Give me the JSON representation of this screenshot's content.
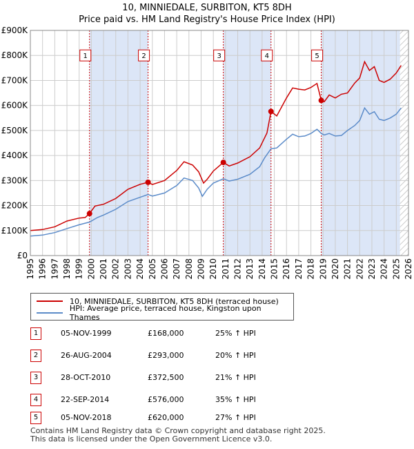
{
  "header": {
    "title_line1": "10, MINNIEDALE, SURBITON, KT5 8DH",
    "title_line2": "Price paid vs. HM Land Registry's House Price Index (HPI)"
  },
  "colors": {
    "price_line": "#cc0000",
    "hpi_line": "#5b8bc9",
    "shade": "#dce6f7",
    "grid": "#cccccc",
    "vline": "#cc0000"
  },
  "legend": {
    "price_label": "10, MINNIEDALE, SURBITON, KT5 8DH (terraced house)",
    "hpi_label": "HPI: Average price, terraced house, Kingston upon Thames"
  },
  "sales": [
    {
      "num": "1",
      "date": "05-NOV-1999",
      "price": "£168,000",
      "hpi": "25% ↑ HPI"
    },
    {
      "num": "2",
      "date": "26-AUG-2004",
      "price": "£293,000",
      "hpi": "20% ↑ HPI"
    },
    {
      "num": "3",
      "date": "28-OCT-2010",
      "price": "£372,500",
      "hpi": "21% ↑ HPI"
    },
    {
      "num": "4",
      "date": "22-SEP-2014",
      "price": "£576,000",
      "hpi": "35% ↑ HPI"
    },
    {
      "num": "5",
      "date": "05-NOV-2018",
      "price": "£620,000",
      "hpi": "27% ↑ HPI"
    }
  ],
  "footer": {
    "line1": "Contains HM Land Registry data © Crown copyright and database right 2025.",
    "line2": "This data is licensed under the Open Government Licence v3.0."
  },
  "chart_data": {
    "type": "line",
    "title": "10, MINNIEDALE, SURBITON, KT5 8DH",
    "subtitle": "Price paid vs. HM Land Registry's House Price Index (HPI)",
    "xlabel": "",
    "ylabel": "",
    "xlim": [
      1995,
      2026
    ],
    "ylim": [
      0,
      900000
    ],
    "grid": true,
    "legend_position": "below-chart",
    "y_ticks": [
      0,
      100000,
      200000,
      300000,
      400000,
      500000,
      600000,
      700000,
      800000,
      900000
    ],
    "y_tick_labels": [
      "£0",
      "£100K",
      "£200K",
      "£300K",
      "£400K",
      "£500K",
      "£600K",
      "£700K",
      "£800K",
      "£900K"
    ],
    "x_ticks": [
      1995,
      1996,
      1997,
      1998,
      1999,
      2000,
      2001,
      2002,
      2003,
      2004,
      2005,
      2006,
      2007,
      2008,
      2009,
      2010,
      2011,
      2012,
      2013,
      2014,
      2015,
      2016,
      2017,
      2018,
      2019,
      2020,
      2021,
      2022,
      2023,
      2024,
      2025,
      2026
    ],
    "x_tick_labels": [
      "1995",
      "1996",
      "1997",
      "1998",
      "1999",
      "2000",
      "2001",
      "2002",
      "2003",
      "2004",
      "2005",
      "2006",
      "2007",
      "2008",
      "2009",
      "2010",
      "2011",
      "2012",
      "2013",
      "2014",
      "2015",
      "2016",
      "2017",
      "2018",
      "2019",
      "2020",
      "2021",
      "2022",
      "2023",
      "2024",
      "2025",
      "2026"
    ],
    "shaded_ranges": [
      [
        1999.85,
        2004.65
      ],
      [
        2010.82,
        2014.73
      ],
      [
        2018.85,
        2025.3
      ]
    ],
    "hatch_start": 2025.3,
    "series": [
      {
        "name": "10, MINNIEDALE, SURBITON, KT5 8DH (terraced house)",
        "points": [
          [
            1995.0,
            100000
          ],
          [
            1996.0,
            104000
          ],
          [
            1997.0,
            115000
          ],
          [
            1998.0,
            138000
          ],
          [
            1999.0,
            150000
          ],
          [
            1999.5,
            152000
          ],
          [
            1999.85,
            168000
          ],
          [
            2000.3,
            198000
          ],
          [
            2001.0,
            205000
          ],
          [
            2002.0,
            228000
          ],
          [
            2003.0,
            265000
          ],
          [
            2004.0,
            285000
          ],
          [
            2004.65,
            293000
          ],
          [
            2005.0,
            284000
          ],
          [
            2006.0,
            300000
          ],
          [
            2007.0,
            340000
          ],
          [
            2007.6,
            375000
          ],
          [
            2008.3,
            362000
          ],
          [
            2008.8,
            335000
          ],
          [
            2009.2,
            290000
          ],
          [
            2009.5,
            305000
          ],
          [
            2010.0,
            338000
          ],
          [
            2010.82,
            372500
          ],
          [
            2011.3,
            358000
          ],
          [
            2012.0,
            370000
          ],
          [
            2013.0,
            395000
          ],
          [
            2013.8,
            430000
          ],
          [
            2014.4,
            490000
          ],
          [
            2014.73,
            576000
          ],
          [
            2015.2,
            558000
          ],
          [
            2016.0,
            630000
          ],
          [
            2016.5,
            670000
          ],
          [
            2017.0,
            665000
          ],
          [
            2017.5,
            662000
          ],
          [
            2018.0,
            672000
          ],
          [
            2018.5,
            688000
          ],
          [
            2018.85,
            620000
          ],
          [
            2019.1,
            615000
          ],
          [
            2019.5,
            642000
          ],
          [
            2020.0,
            630000
          ],
          [
            2020.5,
            645000
          ],
          [
            2021.0,
            650000
          ],
          [
            2021.6,
            690000
          ],
          [
            2022.0,
            710000
          ],
          [
            2022.4,
            775000
          ],
          [
            2022.8,
            740000
          ],
          [
            2023.2,
            755000
          ],
          [
            2023.6,
            700000
          ],
          [
            2024.0,
            692000
          ],
          [
            2024.5,
            705000
          ],
          [
            2025.0,
            730000
          ],
          [
            2025.4,
            760000
          ]
        ]
      },
      {
        "name": "HPI: Average price, terraced house, Kingston upon Thames",
        "points": [
          [
            1995.0,
            78000
          ],
          [
            1996.0,
            82000
          ],
          [
            1997.0,
            92000
          ],
          [
            1998.0,
            108000
          ],
          [
            1999.0,
            123000
          ],
          [
            1999.85,
            134000
          ],
          [
            2000.5,
            152000
          ],
          [
            2001.0,
            162000
          ],
          [
            2002.0,
            185000
          ],
          [
            2003.0,
            216000
          ],
          [
            2004.0,
            233000
          ],
          [
            2004.65,
            244000
          ],
          [
            2005.0,
            238000
          ],
          [
            2006.0,
            250000
          ],
          [
            2007.0,
            280000
          ],
          [
            2007.6,
            310000
          ],
          [
            2008.3,
            300000
          ],
          [
            2008.8,
            270000
          ],
          [
            2009.1,
            237000
          ],
          [
            2009.5,
            265000
          ],
          [
            2010.0,
            290000
          ],
          [
            2010.82,
            307000
          ],
          [
            2011.3,
            298000
          ],
          [
            2012.0,
            305000
          ],
          [
            2013.0,
            325000
          ],
          [
            2013.8,
            355000
          ],
          [
            2014.2,
            390000
          ],
          [
            2014.73,
            427000
          ],
          [
            2015.2,
            430000
          ],
          [
            2016.0,
            465000
          ],
          [
            2016.5,
            485000
          ],
          [
            2017.0,
            475000
          ],
          [
            2017.5,
            478000
          ],
          [
            2018.0,
            488000
          ],
          [
            2018.5,
            505000
          ],
          [
            2018.85,
            488000
          ],
          [
            2019.1,
            482000
          ],
          [
            2019.5,
            488000
          ],
          [
            2020.0,
            478000
          ],
          [
            2020.5,
            480000
          ],
          [
            2021.0,
            500000
          ],
          [
            2021.6,
            520000
          ],
          [
            2022.0,
            540000
          ],
          [
            2022.4,
            590000
          ],
          [
            2022.8,
            565000
          ],
          [
            2023.2,
            575000
          ],
          [
            2023.6,
            545000
          ],
          [
            2024.0,
            540000
          ],
          [
            2024.5,
            550000
          ],
          [
            2025.0,
            565000
          ],
          [
            2025.4,
            590000
          ]
        ]
      }
    ],
    "sale_markers": [
      {
        "label": "1",
        "x": 1999.85,
        "y": 168000
      },
      {
        "label": "2",
        "x": 2004.65,
        "y": 293000
      },
      {
        "label": "3",
        "x": 2010.82,
        "y": 372500
      },
      {
        "label": "4",
        "x": 2014.73,
        "y": 576000
      },
      {
        "label": "5",
        "x": 2018.85,
        "y": 620000
      }
    ]
  }
}
